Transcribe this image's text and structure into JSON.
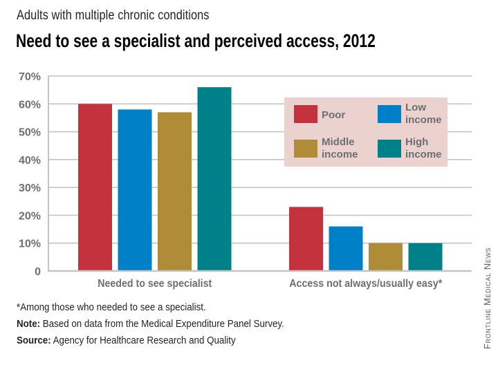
{
  "header": {
    "subtitle": "Adults with multiple chronic conditions",
    "title": "Need to see a specialist and perceived access, 2012"
  },
  "chart_data": {
    "type": "bar",
    "title": "Need to see a specialist and perceived access, 2012",
    "subtitle": "Adults with multiple chronic conditions",
    "xlabel": "",
    "ylabel": "",
    "ylim": [
      0,
      70
    ],
    "yticks": [
      0,
      10,
      20,
      30,
      40,
      50,
      60,
      70
    ],
    "ytick_labels": [
      "0",
      "10%",
      "20%",
      "30%",
      "40%",
      "50%",
      "60%",
      "70%"
    ],
    "grid": true,
    "legend_position": "top-right",
    "categories": [
      "Needed to see specialist",
      "Access not always/usually easy*"
    ],
    "series": [
      {
        "name": "Poor",
        "legend_lines": [
          "Poor"
        ],
        "color": "#c4323d",
        "values": [
          60,
          23
        ]
      },
      {
        "name": "Low income",
        "legend_lines": [
          "Low",
          "income"
        ],
        "color": "#0080c6",
        "values": [
          58,
          16
        ]
      },
      {
        "name": "Middle income",
        "legend_lines": [
          "Middle",
          "income"
        ],
        "color": "#b08b38",
        "values": [
          57,
          10
        ]
      },
      {
        "name": "High income",
        "legend_lines": [
          "High",
          "income"
        ],
        "color": "#00818a",
        "values": [
          66,
          10
        ]
      }
    ],
    "legend_background": "#ebd2ce",
    "gridline_color": "#c3c3c3",
    "label_color": "#6d6e71"
  },
  "footer": {
    "asterisk_note": "*Among those who needed to see a specialist.",
    "note_label": "Note:",
    "note_text": " Based on data from the Medical Expenditure Panel Survey.",
    "source_label": "Source:",
    "source_text": " Agency for Healthcare Research and Quality",
    "credit": "Frontline Medical News"
  }
}
